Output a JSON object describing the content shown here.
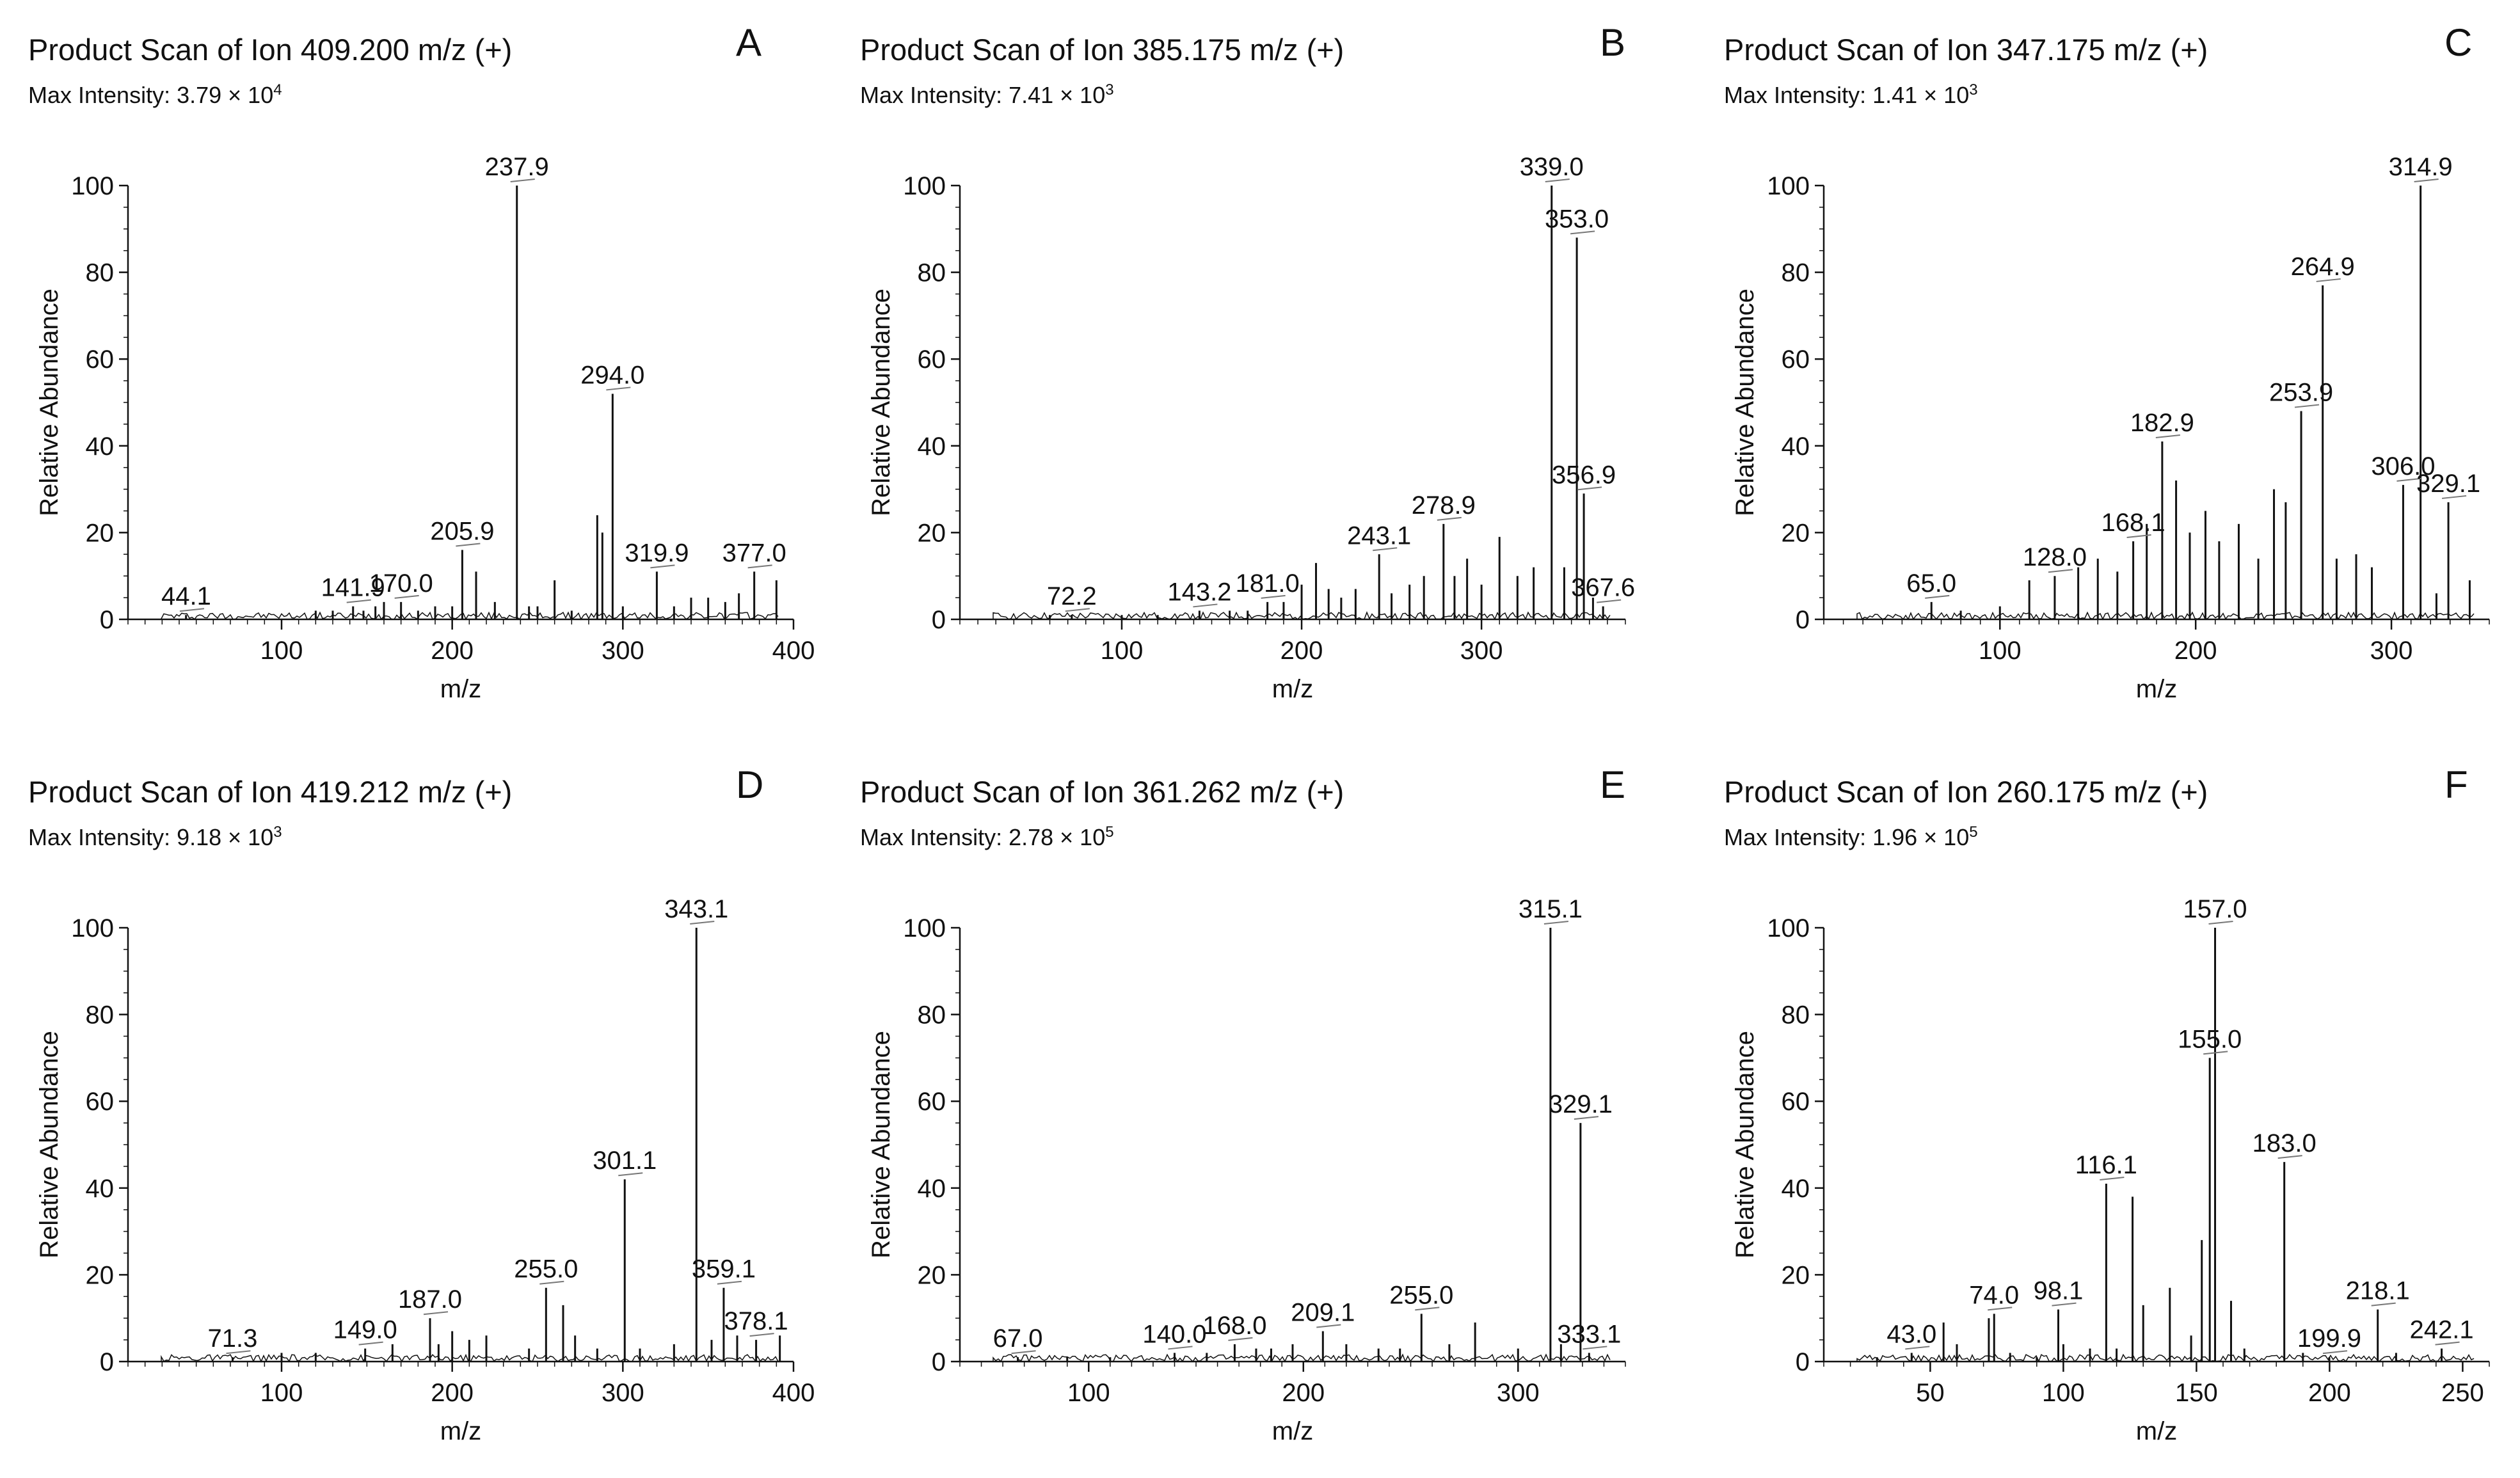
{
  "figure": {
    "panels": [
      {
        "letter": "A",
        "title": "Product Scan of Ion 409.200 m/z (+)",
        "intensity_prefix": "Max Intensity: 3.79 × 10",
        "intensity_exp": "4"
      },
      {
        "letter": "B",
        "title": "Product Scan of Ion 385.175 m/z (+)",
        "intensity_prefix": "Max Intensity: 7.41 × 10",
        "intensity_exp": "3"
      },
      {
        "letter": "C",
        "title": "Product Scan of Ion 347.175 m/z (+)",
        "intensity_prefix": "Max Intensity: 1.41 × 10",
        "intensity_exp": "3"
      },
      {
        "letter": "D",
        "title": "Product Scan of Ion 419.212 m/z (+)",
        "intensity_prefix": "Max Intensity: 9.18 × 10",
        "intensity_exp": "3"
      },
      {
        "letter": "E",
        "title": "Product Scan of Ion 361.262 m/z (+)",
        "intensity_prefix": "Max Intensity: 2.78 × 10",
        "intensity_exp": "5"
      },
      {
        "letter": "F",
        "title": "Product Scan of Ion 260.175 m/z (+)",
        "intensity_prefix": "Max Intensity: 1.96 × 10",
        "intensity_exp": "5"
      }
    ]
  },
  "chart_data": [
    {
      "type": "line",
      "panel": "A",
      "title": "Product Scan of Ion 409.200 m/z (+)",
      "xlabel": "m/z",
      "ylabel": "Relative Abundance",
      "xlim": [
        10,
        400
      ],
      "ylim": [
        0,
        100
      ],
      "xticks": [
        100,
        200,
        300,
        400
      ],
      "yticks": [
        0,
        20,
        40,
        60,
        80,
        100
      ],
      "peaks": [
        [
          44,
          1
        ],
        [
          120,
          2
        ],
        [
          130,
          2
        ],
        [
          141.9,
          3
        ],
        [
          148,
          2
        ],
        [
          155,
          3
        ],
        [
          160,
          4
        ],
        [
          170,
          4
        ],
        [
          180,
          2
        ],
        [
          190,
          3
        ],
        [
          200,
          3
        ],
        [
          205.9,
          16
        ],
        [
          214,
          11
        ],
        [
          225,
          4
        ],
        [
          237.9,
          100
        ],
        [
          245,
          3
        ],
        [
          250,
          3
        ],
        [
          260,
          9
        ],
        [
          270,
          2
        ],
        [
          285,
          24
        ],
        [
          288,
          20
        ],
        [
          294,
          52
        ],
        [
          300,
          3
        ],
        [
          319.9,
          11
        ],
        [
          330,
          3
        ],
        [
          340,
          5
        ],
        [
          350,
          5
        ],
        [
          360,
          4
        ],
        [
          368,
          6
        ],
        [
          377,
          11
        ],
        [
          390,
          9
        ]
      ],
      "labels": [
        {
          "x": 44.1,
          "y": 1,
          "text": "44.1"
        },
        {
          "x": 141.9,
          "y": 3,
          "text": "141.9"
        },
        {
          "x": 170.0,
          "y": 4,
          "text": "170.0"
        },
        {
          "x": 205.9,
          "y": 16,
          "text": "205.9"
        },
        {
          "x": 237.9,
          "y": 100,
          "text": "237.9"
        },
        {
          "x": 294.0,
          "y": 52,
          "text": "294.0"
        },
        {
          "x": 319.9,
          "y": 11,
          "text": "319.9"
        },
        {
          "x": 377.0,
          "y": 11,
          "text": "377.0"
        }
      ]
    },
    {
      "type": "line",
      "panel": "B",
      "title": "Product Scan of Ion 385.175 m/z (+)",
      "xlabel": "m/z",
      "ylabel": "Relative Abundance",
      "xlim": [
        10,
        380
      ],
      "ylim": [
        0,
        100
      ],
      "xticks": [
        100,
        200,
        300
      ],
      "yticks": [
        0,
        20,
        40,
        60,
        80,
        100
      ],
      "peaks": [
        [
          60,
          1
        ],
        [
          72.2,
          1
        ],
        [
          100,
          1
        ],
        [
          120,
          1
        ],
        [
          143.2,
          2
        ],
        [
          160,
          2
        ],
        [
          170,
          2
        ],
        [
          181,
          4
        ],
        [
          190,
          4
        ],
        [
          200,
          8
        ],
        [
          208,
          13
        ],
        [
          215,
          7
        ],
        [
          222,
          5
        ],
        [
          230,
          7
        ],
        [
          243.1,
          15
        ],
        [
          250,
          6
        ],
        [
          260,
          8
        ],
        [
          268,
          10
        ],
        [
          278.9,
          22
        ],
        [
          285,
          10
        ],
        [
          292,
          14
        ],
        [
          300,
          8
        ],
        [
          310,
          19
        ],
        [
          320,
          10
        ],
        [
          329,
          12
        ],
        [
          339,
          100
        ],
        [
          346,
          12
        ],
        [
          353,
          88
        ],
        [
          356.9,
          29
        ],
        [
          362,
          5
        ],
        [
          367.6,
          3
        ]
      ],
      "labels": [
        {
          "x": 72.2,
          "y": 1,
          "text": "72.2"
        },
        {
          "x": 143.2,
          "y": 2,
          "text": "143.2"
        },
        {
          "x": 181.0,
          "y": 4,
          "text": "181.0"
        },
        {
          "x": 243.1,
          "y": 15,
          "text": "243.1"
        },
        {
          "x": 278.9,
          "y": 22,
          "text": "278.9"
        },
        {
          "x": 339.0,
          "y": 100,
          "text": "339.0"
        },
        {
          "x": 353.0,
          "y": 88,
          "text": "353.0"
        },
        {
          "x": 356.9,
          "y": 29,
          "text": "356.9"
        },
        {
          "x": 367.6,
          "y": 3,
          "text": "367.6"
        }
      ]
    },
    {
      "type": "line",
      "panel": "C",
      "title": "Product Scan of Ion 347.175 m/z (+)",
      "xlabel": "m/z",
      "ylabel": "Relative Abundance",
      "xlim": [
        10,
        350
      ],
      "ylim": [
        0,
        100
      ],
      "xticks": [
        100,
        200,
        300
      ],
      "yticks": [
        0,
        20,
        40,
        60,
        80,
        100
      ],
      "peaks": [
        [
          65,
          4
        ],
        [
          80,
          2
        ],
        [
          100,
          3
        ],
        [
          115,
          9
        ],
        [
          128,
          10
        ],
        [
          140,
          12
        ],
        [
          150,
          14
        ],
        [
          160,
          11
        ],
        [
          168.1,
          18
        ],
        [
          175,
          22
        ],
        [
          182.9,
          41
        ],
        [
          190,
          32
        ],
        [
          197,
          20
        ],
        [
          205,
          25
        ],
        [
          212,
          18
        ],
        [
          222,
          22
        ],
        [
          232,
          14
        ],
        [
          240,
          30
        ],
        [
          246,
          27
        ],
        [
          253.9,
          48
        ],
        [
          264.9,
          77
        ],
        [
          272,
          14
        ],
        [
          282,
          15
        ],
        [
          290,
          12
        ],
        [
          306,
          31
        ],
        [
          314.9,
          100
        ],
        [
          323,
          6
        ],
        [
          329.1,
          27
        ],
        [
          340,
          9
        ]
      ],
      "labels": [
        {
          "x": 65.0,
          "y": 4,
          "text": "65.0"
        },
        {
          "x": 128.0,
          "y": 10,
          "text": "128.0"
        },
        {
          "x": 168.1,
          "y": 18,
          "text": "168.1"
        },
        {
          "x": 182.9,
          "y": 41,
          "text": "182.9"
        },
        {
          "x": 253.9,
          "y": 48,
          "text": "253.9"
        },
        {
          "x": 264.9,
          "y": 77,
          "text": "264.9"
        },
        {
          "x": 306.0,
          "y": 31,
          "text": "306.0"
        },
        {
          "x": 314.9,
          "y": 100,
          "text": "314.9"
        },
        {
          "x": 329.1,
          "y": 27,
          "text": "329.1"
        }
      ]
    },
    {
      "type": "line",
      "panel": "D",
      "title": "Product Scan of Ion 419.212 m/z (+)",
      "xlabel": "m/z",
      "ylabel": "Relative Abundance",
      "xlim": [
        10,
        400
      ],
      "ylim": [
        0,
        100
      ],
      "xticks": [
        100,
        200,
        300,
        400
      ],
      "yticks": [
        0,
        20,
        40,
        60,
        80,
        100
      ],
      "peaks": [
        [
          71.3,
          1
        ],
        [
          100,
          2
        ],
        [
          120,
          2
        ],
        [
          149,
          3
        ],
        [
          165,
          4
        ],
        [
          187,
          10
        ],
        [
          192,
          4
        ],
        [
          200,
          7
        ],
        [
          210,
          5
        ],
        [
          220,
          6
        ],
        [
          245,
          3
        ],
        [
          255,
          17
        ],
        [
          265,
          13
        ],
        [
          272,
          6
        ],
        [
          285,
          3
        ],
        [
          301.1,
          42
        ],
        [
          310,
          3
        ],
        [
          330,
          4
        ],
        [
          343.1,
          100
        ],
        [
          352,
          5
        ],
        [
          359.1,
          17
        ],
        [
          367,
          6
        ],
        [
          378.1,
          5
        ],
        [
          392,
          6
        ]
      ],
      "labels": [
        {
          "x": 71.3,
          "y": 1,
          "text": "71.3"
        },
        {
          "x": 149.0,
          "y": 3,
          "text": "149.0"
        },
        {
          "x": 187.0,
          "y": 10,
          "text": "187.0"
        },
        {
          "x": 255.0,
          "y": 17,
          "text": "255.0"
        },
        {
          "x": 301.1,
          "y": 42,
          "text": "301.1"
        },
        {
          "x": 343.1,
          "y": 100,
          "text": "343.1"
        },
        {
          "x": 359.1,
          "y": 17,
          "text": "359.1"
        },
        {
          "x": 378.1,
          "y": 5,
          "text": "378.1"
        }
      ]
    },
    {
      "type": "line",
      "panel": "E",
      "title": "Product Scan of Ion 361.262 m/z (+)",
      "xlabel": "m/z",
      "ylabel": "Relative Abundance",
      "xlim": [
        40,
        350
      ],
      "ylim": [
        0,
        100
      ],
      "xticks": [
        100,
        200,
        300
      ],
      "yticks": [
        0,
        20,
        40,
        60,
        80,
        100
      ],
      "peaks": [
        [
          67,
          1
        ],
        [
          90,
          1
        ],
        [
          110,
          1
        ],
        [
          140,
          2
        ],
        [
          155,
          2
        ],
        [
          168,
          4
        ],
        [
          178,
          3
        ],
        [
          185,
          3
        ],
        [
          195,
          4
        ],
        [
          209.1,
          7
        ],
        [
          220,
          4
        ],
        [
          235,
          3
        ],
        [
          245,
          3
        ],
        [
          255,
          11
        ],
        [
          268,
          4
        ],
        [
          280,
          9
        ],
        [
          300,
          3
        ],
        [
          315.1,
          100
        ],
        [
          320,
          4
        ],
        [
          329.1,
          55
        ],
        [
          333.1,
          2
        ]
      ],
      "labels": [
        {
          "x": 67.0,
          "y": 1,
          "text": "67.0"
        },
        {
          "x": 140.0,
          "y": 2,
          "text": "140.0"
        },
        {
          "x": 168.0,
          "y": 4,
          "text": "168.0"
        },
        {
          "x": 209.1,
          "y": 7,
          "text": "209.1"
        },
        {
          "x": 255.0,
          "y": 11,
          "text": "255.0"
        },
        {
          "x": 315.1,
          "y": 100,
          "text": "315.1"
        },
        {
          "x": 329.1,
          "y": 55,
          "text": "329.1"
        },
        {
          "x": 333.1,
          "y": 2,
          "text": "333.1"
        }
      ]
    },
    {
      "type": "line",
      "panel": "F",
      "title": "Product Scan of Ion 260.175 m/z (+)",
      "xlabel": "m/z",
      "ylabel": "Relative Abundance",
      "xlim": [
        10,
        260
      ],
      "ylim": [
        0,
        100
      ],
      "xticks": [
        50,
        100,
        150,
        200,
        250
      ],
      "yticks": [
        0,
        20,
        40,
        60,
        80,
        100
      ],
      "peaks": [
        [
          30,
          1
        ],
        [
          43,
          2
        ],
        [
          55,
          9
        ],
        [
          60,
          4
        ],
        [
          72,
          10
        ],
        [
          74,
          11
        ],
        [
          80,
          2
        ],
        [
          90,
          1
        ],
        [
          98.1,
          12
        ],
        [
          100,
          4
        ],
        [
          110,
          3
        ],
        [
          116.1,
          41
        ],
        [
          120,
          3
        ],
        [
          126,
          38
        ],
        [
          130,
          13
        ],
        [
          140,
          17
        ],
        [
          148,
          6
        ],
        [
          152,
          28
        ],
        [
          155,
          70
        ],
        [
          157,
          100
        ],
        [
          163,
          14
        ],
        [
          168,
          3
        ],
        [
          183,
          46
        ],
        [
          190,
          2
        ],
        [
          199.9,
          1
        ],
        [
          218.1,
          12
        ],
        [
          225,
          2
        ],
        [
          242.1,
          3
        ]
      ],
      "labels": [
        {
          "x": 43.0,
          "y": 2,
          "text": "43.0"
        },
        {
          "x": 74.0,
          "y": 11,
          "text": "74.0"
        },
        {
          "x": 98.1,
          "y": 12,
          "text": "98.1"
        },
        {
          "x": 116.1,
          "y": 41,
          "text": "116.1"
        },
        {
          "x": 155.0,
          "y": 70,
          "text": "155.0"
        },
        {
          "x": 157.0,
          "y": 100,
          "text": "157.0"
        },
        {
          "x": 183.0,
          "y": 46,
          "text": "183.0"
        },
        {
          "x": 199.9,
          "y": 1,
          "text": "199.9"
        },
        {
          "x": 218.1,
          "y": 12,
          "text": "218.1"
        },
        {
          "x": 242.1,
          "y": 3,
          "text": "242.1"
        }
      ]
    }
  ]
}
